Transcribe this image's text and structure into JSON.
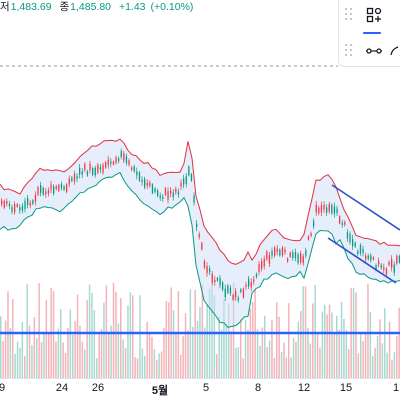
{
  "legend": {
    "low_label": "저",
    "low_value": "1,483.69",
    "close_label": "종",
    "close_value": "1,485.80",
    "change": "+1.43",
    "change_pct": "(+0.10%)"
  },
  "x_axis": {
    "ticks": [
      "9",
      "24",
      "26",
      "5월",
      "5",
      "8",
      "12",
      "15",
      "1"
    ]
  },
  "toolbar": {
    "icons": [
      "drag-handle-icon",
      "object-tree-icon",
      "trend-line-icon",
      "brush-icon"
    ]
  },
  "colors": {
    "up": "#089981",
    "down": "#f23645",
    "upper_band": "#e0313f",
    "lower_band": "#089981",
    "band_fill": "#cfe0f5",
    "channel": "#2b4fc9",
    "volume_up": "#a8d9cf",
    "volume_down": "#f3b3b7",
    "volume_baseline": "#2962ff",
    "dashed_line": "#787b86"
  }
}
